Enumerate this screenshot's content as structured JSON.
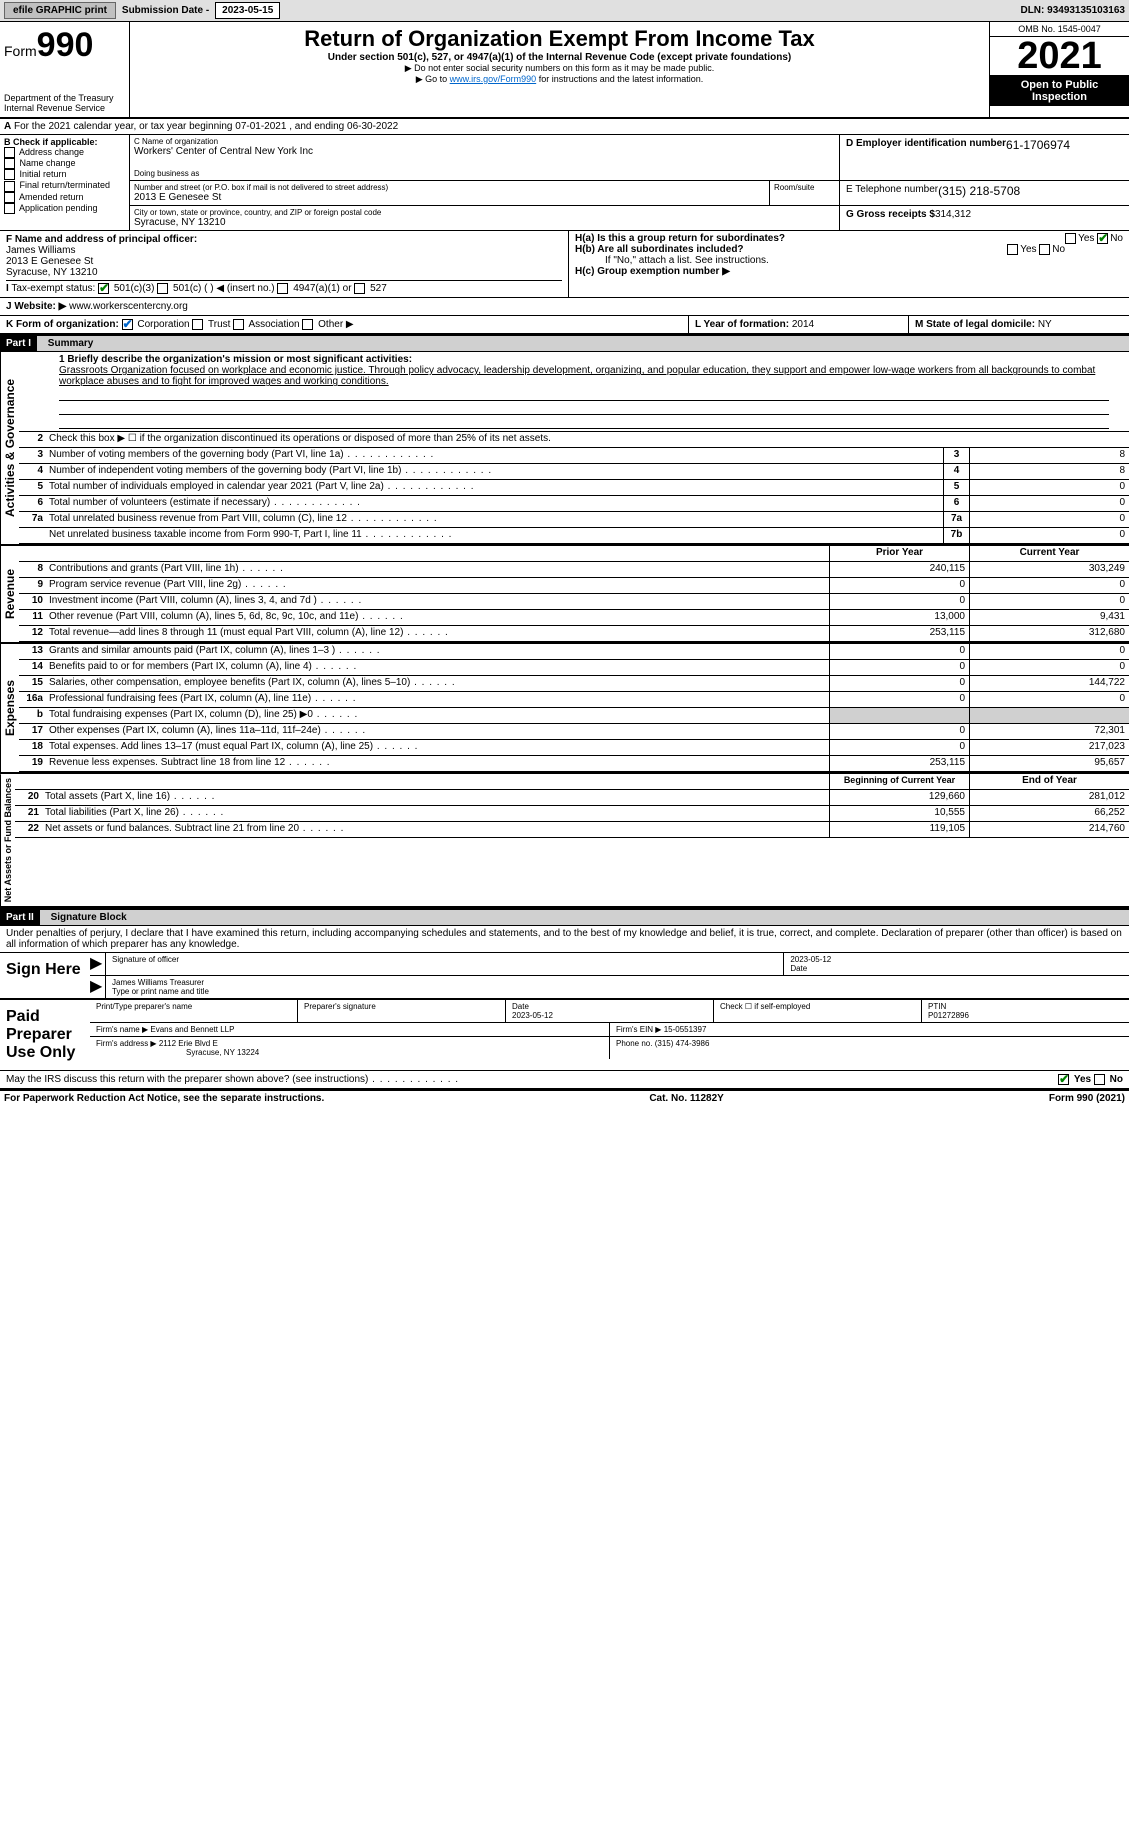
{
  "topbar": {
    "efile": "efile GRAPHIC print",
    "sub_label": "Submission Date - 2023-05-15",
    "dln": "DLN: 93493135103163"
  },
  "header": {
    "form": "Form",
    "num": "990",
    "dept": "Department of the Treasury",
    "irs": "Internal Revenue Service",
    "title": "Return of Organization Exempt From Income Tax",
    "sub": "Under section 501(c), 527, or 4947(a)(1) of the Internal Revenue Code (except private foundations)",
    "note1": "▶ Do not enter social security numbers on this form as it may be made public.",
    "note2_pre": "▶ Go to ",
    "note2_link": "www.irs.gov/Form990",
    "note2_post": " for instructions and the latest information.",
    "omb": "OMB No. 1545-0047",
    "year": "2021",
    "open": "Open to Public Inspection"
  },
  "A": {
    "text": "For the 2021 calendar year, or tax year beginning 07-01-2021   , and ending 06-30-2022"
  },
  "B": {
    "hdr": "B Check if applicable:",
    "items": [
      "Address change",
      "Name change",
      "Initial return",
      "Final return/terminated",
      "Amended return",
      "Application pending"
    ]
  },
  "C": {
    "name_lbl": "C Name of organization",
    "name": "Workers' Center of Central New York Inc",
    "dba_lbl": "Doing business as",
    "addr_lbl": "Number and street (or P.O. box if mail is not delivered to street address)",
    "room_lbl": "Room/suite",
    "addr": "2013 E Genesee St",
    "city_lbl": "City or town, state or province, country, and ZIP or foreign postal code",
    "city": "Syracuse, NY  13210"
  },
  "D": {
    "lbl": "D Employer identification number",
    "val": "61-1706974"
  },
  "E": {
    "lbl": "E Telephone number",
    "val": "(315) 218-5708"
  },
  "G": {
    "lbl": "G Gross receipts $",
    "val": "314,312"
  },
  "F": {
    "lbl": "F  Name and address of principal officer:",
    "name": "James Williams",
    "addr1": "2013 E Genesee St",
    "addr2": "Syracuse, NY  13210"
  },
  "H": {
    "a": "H(a)  Is this a group return for subordinates?",
    "b": "H(b)  Are all subordinates included?",
    "note": "If \"No,\" attach a list. See instructions.",
    "c": "H(c)  Group exemption number ▶"
  },
  "I": {
    "lbl": "Tax-exempt status:",
    "opts": [
      "501(c)(3)",
      "501(c) (  ) ◀ (insert no.)",
      "4947(a)(1) or",
      "527"
    ]
  },
  "J": {
    "lbl": "Website: ▶",
    "val": "www.workerscentercny.org"
  },
  "K": {
    "lbl": "K Form of organization:",
    "opts": [
      "Corporation",
      "Trust",
      "Association",
      "Other ▶"
    ]
  },
  "L": {
    "lbl": "L Year of formation:",
    "val": "2014"
  },
  "M": {
    "lbl": "M State of legal domicile:",
    "val": "NY"
  },
  "part1": {
    "hdr": "Part I",
    "title": "Summary",
    "l1": "1  Briefly describe the organization's mission or most significant activities:",
    "mission": "Grassroots Organization focused on workplace and economic justice. Through policy advocacy, leadership development, organizing, and popular education, they support and empower low-wage workers from all backgrounds to combat workplace abuses and to fight for improved wages and working conditions.",
    "l2": "Check this box ▶ ☐ if the organization discontinued its operations or disposed of more than 25% of its net assets.",
    "sidebar1": "Activities & Governance",
    "sidebar2": "Revenue",
    "sidebar3": "Expenses",
    "sidebar4": "Net Assets or Fund Balances",
    "lines_gov": [
      {
        "n": "3",
        "d": "Number of voting members of the governing body (Part VI, line 1a)",
        "box": "3",
        "v": "8"
      },
      {
        "n": "4",
        "d": "Number of independent voting members of the governing body (Part VI, line 1b)",
        "box": "4",
        "v": "8"
      },
      {
        "n": "5",
        "d": "Total number of individuals employed in calendar year 2021 (Part V, line 2a)",
        "box": "5",
        "v": "0"
      },
      {
        "n": "6",
        "d": "Total number of volunteers (estimate if necessary)",
        "box": "6",
        "v": "0"
      },
      {
        "n": "7a",
        "d": "Total unrelated business revenue from Part VIII, column (C), line 12",
        "box": "7a",
        "v": "0"
      },
      {
        "n": "",
        "d": "Net unrelated business taxable income from Form 990-T, Part I, line 11",
        "box": "7b",
        "v": "0"
      }
    ],
    "hdr_prior": "Prior Year",
    "hdr_curr": "Current Year",
    "lines_rev": [
      {
        "n": "8",
        "d": "Contributions and grants (Part VIII, line 1h)",
        "p": "240,115",
        "c": "303,249"
      },
      {
        "n": "9",
        "d": "Program service revenue (Part VIII, line 2g)",
        "p": "0",
        "c": "0"
      },
      {
        "n": "10",
        "d": "Investment income (Part VIII, column (A), lines 3, 4, and 7d )",
        "p": "0",
        "c": "0"
      },
      {
        "n": "11",
        "d": "Other revenue (Part VIII, column (A), lines 5, 6d, 8c, 9c, 10c, and 11e)",
        "p": "13,000",
        "c": "9,431"
      },
      {
        "n": "12",
        "d": "Total revenue—add lines 8 through 11 (must equal Part VIII, column (A), line 12)",
        "p": "253,115",
        "c": "312,680"
      }
    ],
    "lines_exp": [
      {
        "n": "13",
        "d": "Grants and similar amounts paid (Part IX, column (A), lines 1–3 )",
        "p": "0",
        "c": "0"
      },
      {
        "n": "14",
        "d": "Benefits paid to or for members (Part IX, column (A), line 4)",
        "p": "0",
        "c": "0"
      },
      {
        "n": "15",
        "d": "Salaries, other compensation, employee benefits (Part IX, column (A), lines 5–10)",
        "p": "0",
        "c": "144,722"
      },
      {
        "n": "16a",
        "d": "Professional fundraising fees (Part IX, column (A), line 11e)",
        "p": "0",
        "c": "0"
      },
      {
        "n": "b",
        "d": "Total fundraising expenses (Part IX, column (D), line 25) ▶0",
        "p": "",
        "c": "",
        "sh": true
      },
      {
        "n": "17",
        "d": "Other expenses (Part IX, column (A), lines 11a–11d, 11f–24e)",
        "p": "0",
        "c": "72,301"
      },
      {
        "n": "18",
        "d": "Total expenses. Add lines 13–17 (must equal Part IX, column (A), line 25)",
        "p": "0",
        "c": "217,023"
      },
      {
        "n": "19",
        "d": "Revenue less expenses. Subtract line 18 from line 12",
        "p": "253,115",
        "c": "95,657"
      }
    ],
    "hdr_begin": "Beginning of Current Year",
    "hdr_end": "End of Year",
    "lines_net": [
      {
        "n": "20",
        "d": "Total assets (Part X, line 16)",
        "p": "129,660",
        "c": "281,012"
      },
      {
        "n": "21",
        "d": "Total liabilities (Part X, line 26)",
        "p": "10,555",
        "c": "66,252"
      },
      {
        "n": "22",
        "d": "Net assets or fund balances. Subtract line 21 from line 20",
        "p": "119,105",
        "c": "214,760"
      }
    ]
  },
  "part2": {
    "hdr": "Part II",
    "title": "Signature Block",
    "decl": "Under penalties of perjury, I declare that I have examined this return, including accompanying schedules and statements, and to the best of my knowledge and belief, it is true, correct, and complete. Declaration of preparer (other than officer) is based on all information of which preparer has any knowledge."
  },
  "sign": {
    "here": "Sign Here",
    "sig_off": "Signature of officer",
    "date": "Date",
    "date_val": "2023-05-12",
    "name": "James Williams  Treasurer",
    "name_lbl": "Type or print name and title"
  },
  "paid": {
    "hdr": "Paid Preparer Use Only",
    "prep_name_lbl": "Print/Type preparer's name",
    "prep_sig_lbl": "Preparer's signature",
    "date_lbl": "Date",
    "date_val": "2023-05-12",
    "check_lbl": "Check ☐ if self-employed",
    "ptin_lbl": "PTIN",
    "ptin": "P01272896",
    "firm_name_lbl": "Firm's name    ▶",
    "firm_name": "Evans and Bennett LLP",
    "firm_ein_lbl": "Firm's EIN ▶",
    "firm_ein": "15-0551397",
    "firm_addr_lbl": "Firm's address ▶",
    "firm_addr": "2112 Erie Blvd E",
    "firm_city": "Syracuse, NY  13224",
    "phone_lbl": "Phone no.",
    "phone": "(315) 474-3986"
  },
  "may": "May the IRS discuss this return with the preparer shown above? (see instructions)",
  "footer": {
    "left": "For Paperwork Reduction Act Notice, see the separate instructions.",
    "mid": "Cat. No. 11282Y",
    "right": "Form 990 (2021)"
  },
  "yes": "Yes",
  "no": "No"
}
